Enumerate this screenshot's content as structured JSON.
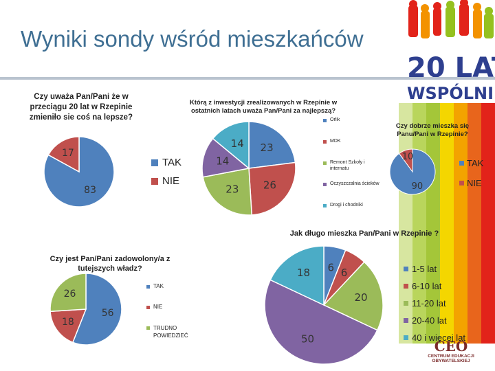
{
  "slide": {
    "title": "Wyniki sondy wśród mieszkańców"
  },
  "logo": {
    "line1": "20 LAT",
    "line2": "WSPÓLNIE",
    "ceo_mark": "CEO",
    "ceo_name": "CENTRUM EDUKACJI OBYWATELSKIEJ",
    "colors": [
      "#e31e24",
      "#f39200",
      "#ffd500",
      "#95c11f",
      "#009fe3",
      "#2e3f8f"
    ]
  },
  "chart_data": [
    {
      "type": "pie",
      "title": "Czy uważa Pan/Pani że w przeciągu 20 lat w Rzepinie zmieniło sie coś na lepsze?",
      "categories": [
        "TAK",
        "NIE"
      ],
      "values": [
        83,
        17
      ],
      "colors": [
        "#4f81bd",
        "#c0504d"
      ],
      "legend": "right"
    },
    {
      "type": "pie",
      "title": "Którą z inwestycji zrealizowanych w Rzepinie w ostatnich latach uważa Pan/Pani za najlepszą?",
      "categories": [
        "Orlik",
        "MDK",
        "Remont Szkoły i internatu",
        "Oczyszczalnia ścieków",
        "Drogi i chodniki"
      ],
      "values": [
        23,
        26,
        23,
        14,
        14
      ],
      "colors": [
        "#4f81bd",
        "#c0504d",
        "#9bbb59",
        "#8064a2",
        "#4bacc6"
      ],
      "legend": "right"
    },
    {
      "type": "pie",
      "title": "Czy dobrze mieszka się Panu/Pani w Rzepinie?",
      "categories": [
        "TAK",
        "NIE"
      ],
      "values": [
        90,
        10
      ],
      "colors": [
        "#4f81bd",
        "#c0504d"
      ],
      "legend": "right"
    },
    {
      "type": "pie",
      "title": "Czy jest Pan/Pani zadowolony/a z tutejszych władz?",
      "categories": [
        "TAK",
        "NIE",
        "TRUDNO POWIEDZIEĆ"
      ],
      "values": [
        56,
        18,
        26
      ],
      "colors": [
        "#4f81bd",
        "#c0504d",
        "#9bbb59"
      ],
      "legend": "right"
    },
    {
      "type": "pie",
      "title": "Jak długo mieszka Pan/Pani w Rzepinie ?",
      "categories": [
        "1-5 lat",
        "6-10 lat",
        "11-20 lat",
        "20-40 lat",
        "40 i więcej lat"
      ],
      "values": [
        6,
        6,
        20,
        50,
        18
      ],
      "colors": [
        "#4f81bd",
        "#c0504d",
        "#9bbb59",
        "#8064a2",
        "#4bacc6"
      ],
      "legend": "right"
    }
  ]
}
